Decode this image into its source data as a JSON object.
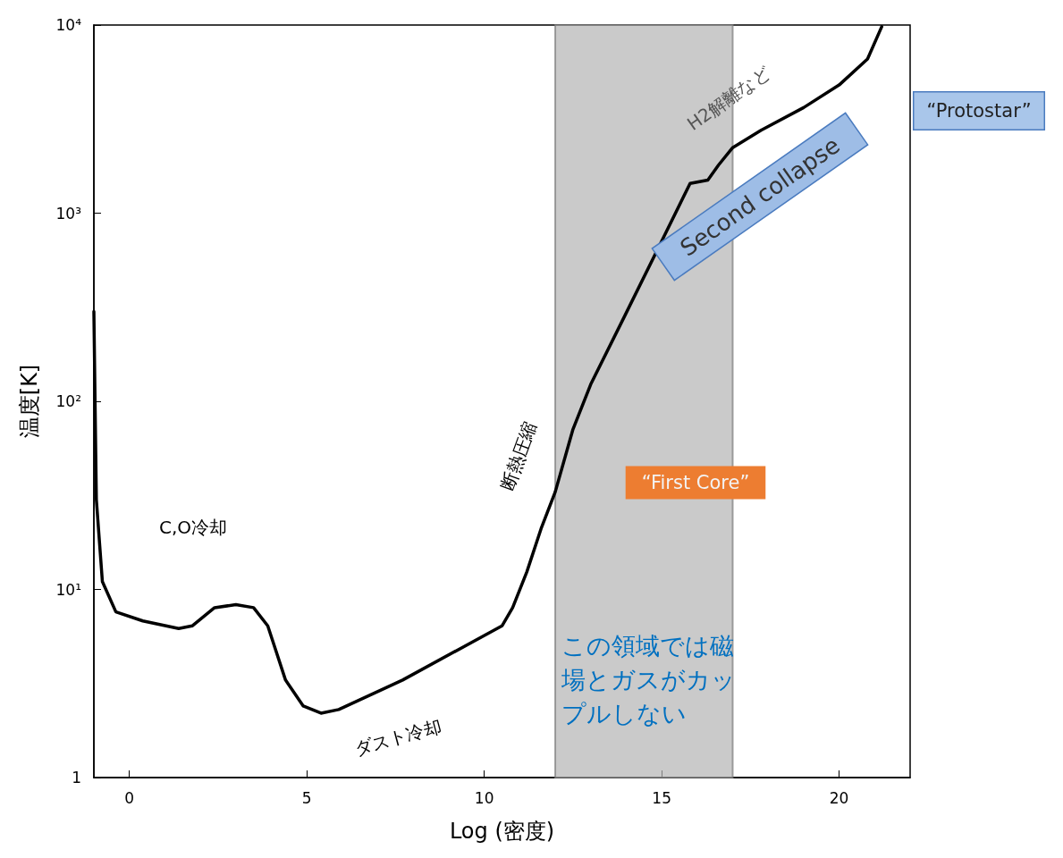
{
  "chart_data": {
    "type": "line",
    "xlabel": "Log (密度)",
    "ylabel": "温度[K]",
    "log": "y",
    "xlim": [
      -1,
      22
    ],
    "xticks": [
      0,
      5,
      10,
      15,
      20
    ],
    "ylim": [
      1,
      10000
    ],
    "yticks": [
      1,
      {
        "value": 10,
        "label": "10¹"
      },
      {
        "value": 100,
        "label": "10²"
      },
      {
        "value": 1000,
        "label": "10³"
      },
      {
        "value": 10000,
        "label": "10⁴"
      }
    ],
    "line_style": "solid",
    "series": [
      {
        "color": "#000000",
        "x": [
          -1.0,
          -0.93,
          -0.76,
          -0.38,
          0.38,
          1.39,
          1.77,
          2.4,
          3.0,
          3.5,
          3.9,
          4.4,
          4.9,
          5.4,
          5.9,
          7.7,
          10.5,
          10.8,
          11.2,
          11.6,
          12.0,
          12.5,
          13.0,
          14.0,
          15.0,
          15.8,
          16.3,
          16.6,
          17.0,
          17.8,
          19.0,
          20.0,
          20.8,
          21.2
        ],
        "values": [
          300,
          30,
          11,
          7.6,
          6.8,
          6.2,
          6.4,
          8,
          8.3,
          8,
          6.4,
          3.3,
          2.4,
          2.2,
          2.3,
          3.3,
          6.4,
          8,
          12.4,
          21,
          33,
          71,
          123,
          295,
          710,
          1440,
          1500,
          1800,
          2230,
          2760,
          3640,
          4800,
          6600,
          9800
        ]
      }
    ],
    "bands": [
      {
        "axis": "x",
        "from": 12,
        "to": 17,
        "color": "#b4b4b4"
      }
    ],
    "annotations": [
      "C,O冷却",
      "ダスト冷却",
      "断熱圧縮",
      "H2解離など",
      "Second collapse",
      "“Protostar”",
      "“First Core”",
      "この領域では磁場とガスがカップルしない"
    ]
  }
}
